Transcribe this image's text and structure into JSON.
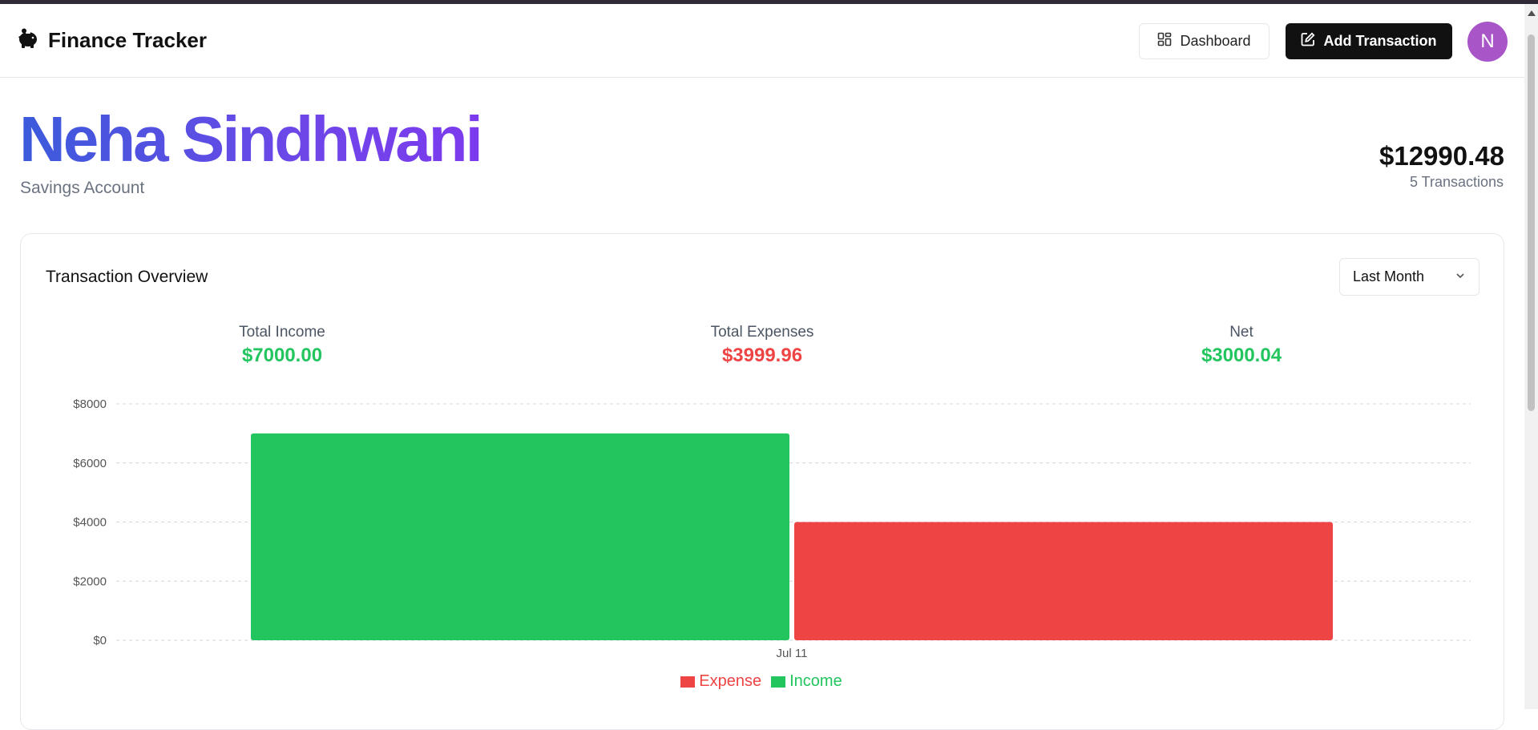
{
  "app": {
    "title": "Finance Tracker",
    "logo_icon": "piggy-bank-icon"
  },
  "header": {
    "dashboard_label": "Dashboard",
    "dashboard_icon": "grid-icon",
    "add_label": "Add Transaction",
    "add_icon": "edit-icon",
    "avatar_initial": "N",
    "avatar_color": "#a855c7"
  },
  "account": {
    "name": "Neha Sindhwani",
    "type": "Savings Account",
    "balance": "$12990.48",
    "transactions_text": "5 Transactions"
  },
  "overview": {
    "title": "Transaction Overview",
    "period": "Last Month",
    "stats": [
      {
        "label": "Total Income",
        "value": "$7000.00",
        "color": "#22c55e"
      },
      {
        "label": "Total Expenses",
        "value": "$3999.96",
        "color": "#ef4444"
      },
      {
        "label": "Net",
        "value": "$3000.04",
        "color": "#22c55e"
      }
    ]
  },
  "chart_data": {
    "type": "bar",
    "categories": [
      "Jul 11"
    ],
    "series": [
      {
        "name": "Income",
        "values": [
          7000
        ],
        "color": "#22c55e"
      },
      {
        "name": "Expense",
        "values": [
          3999.96
        ],
        "color": "#ef4444"
      }
    ],
    "ylim": [
      0,
      8000
    ],
    "yticks": [
      "$0",
      "$2000",
      "$4000",
      "$6000",
      "$8000"
    ],
    "grid": true,
    "legend_placement": "bottom-center",
    "legend_order": [
      "Expense",
      "Income"
    ]
  }
}
